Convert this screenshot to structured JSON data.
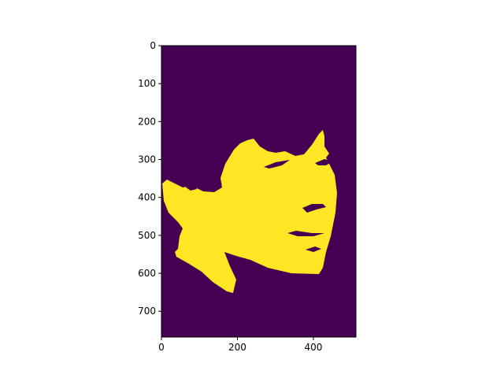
{
  "image": {
    "description_type": "binary segmentation mask",
    "colormap": "viridis",
    "colors": {
      "background": "#440154",
      "foreground": "#fde725",
      "frame": "#000000"
    }
  },
  "axes": {
    "x_ticks": [
      "0",
      "200",
      "400"
    ],
    "y_ticks": [
      "0",
      "100",
      "200",
      "300",
      "400",
      "500",
      "600",
      "700"
    ],
    "xlim": [
      0,
      512
    ],
    "ylim": [
      768,
      0
    ]
  }
}
